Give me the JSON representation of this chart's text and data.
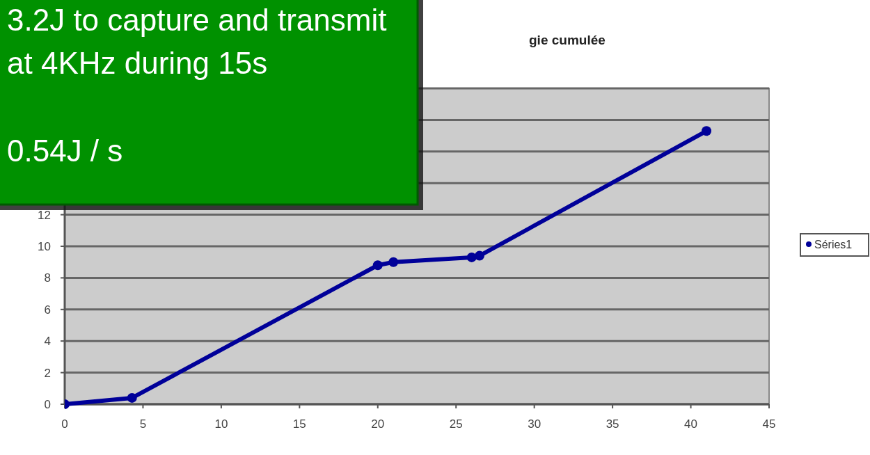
{
  "chart_data": {
    "type": "line",
    "title": "gie cumulée",
    "x": [
      0,
      4.3,
      20,
      21,
      26,
      26.5,
      41
    ],
    "series": [
      {
        "name": "Séries1",
        "color": "#000099",
        "values": [
          0,
          0.4,
          8.8,
          9,
          9.3,
          9.4,
          17.3
        ]
      }
    ],
    "xlim": [
      0,
      45
    ],
    "xticks": [
      0,
      5,
      10,
      15,
      20,
      25,
      30,
      35,
      40,
      45
    ],
    "ylim": [
      0,
      20
    ],
    "yticks": [
      0,
      2,
      4,
      6,
      8,
      10,
      12,
      {
        "value": 14,
        "label": null
      },
      {
        "value": 16,
        "label": null
      },
      {
        "value": 18,
        "label": null
      },
      {
        "value": 20,
        "label": null
      }
    ],
    "grid": "y",
    "legend": "right",
    "marker": "circle",
    "line_style": "solid",
    "annotations": [
      "3.2J to capture and transmit",
      "at 4KHz during 15s",
      "0.54J / s"
    ]
  }
}
